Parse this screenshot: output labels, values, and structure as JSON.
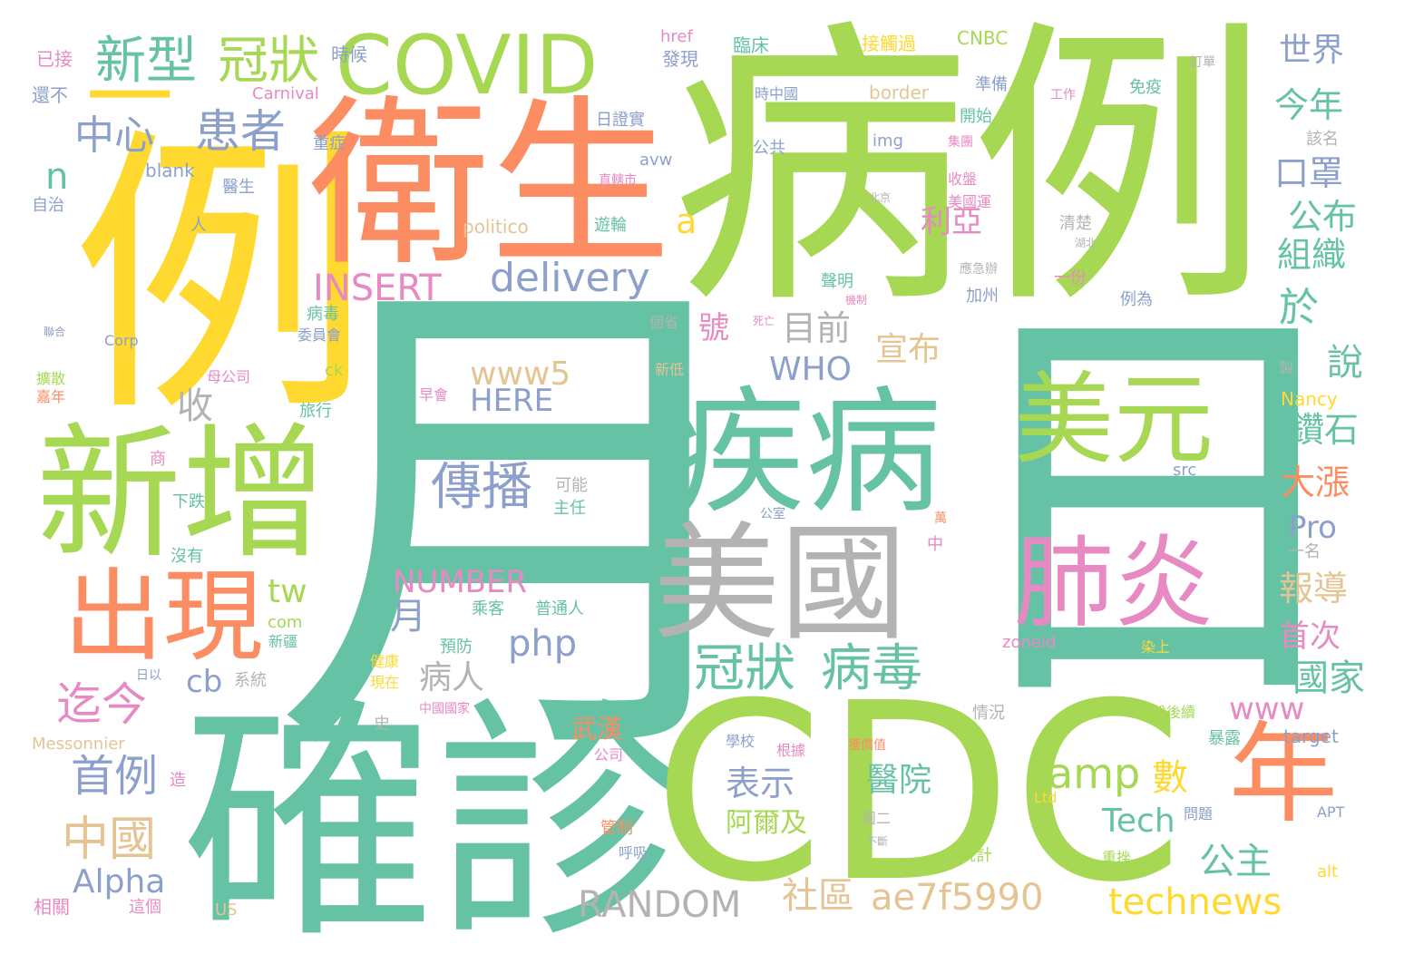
{
  "words": [
    {
      "text": "病例",
      "color": "#a6d854"
    },
    {
      "text": "月",
      "color": "#66c2a5"
    },
    {
      "text": "日",
      "color": "#66c2a5"
    },
    {
      "text": "例",
      "color": "#ffd92f"
    },
    {
      "text": "衛生",
      "color": "#fc8d62"
    },
    {
      "text": "確診",
      "color": "#66c2a5"
    },
    {
      "text": "CDC",
      "color": "#a6d854"
    },
    {
      "text": "新增",
      "color": "#a6d854"
    },
    {
      "text": "疾病",
      "color": "#66c2a5"
    },
    {
      "text": "美國",
      "color": "#b3b3b3"
    },
    {
      "text": "COVID",
      "color": "#a6d854"
    },
    {
      "text": "年",
      "color": "#fc8d62"
    },
    {
      "text": "出現",
      "color": "#fc8d62"
    },
    {
      "text": "美元",
      "color": "#a6d854"
    },
    {
      "text": "肺炎",
      "color": "#e78ac3"
    },
    {
      "text": "新型",
      "color": "#66c2a5"
    },
    {
      "text": "冠狀",
      "color": "#a6d854"
    },
    {
      "text": "冠狀",
      "color": "#66c2a5"
    },
    {
      "text": "病毒",
      "color": "#66c2a5"
    },
    {
      "text": "中心",
      "color": "#8da0cb"
    },
    {
      "text": "患者",
      "color": "#8da0cb"
    },
    {
      "text": "一",
      "color": "#ffd92f"
    },
    {
      "text": "delivery",
      "color": "#8da0cb"
    },
    {
      "text": "INSERT",
      "color": "#e78ac3"
    },
    {
      "text": "傳播",
      "color": "#8da0cb"
    },
    {
      "text": "迄今",
      "color": "#e78ac3"
    },
    {
      "text": "中國",
      "color": "#e5c494"
    },
    {
      "text": "首例",
      "color": "#8da0cb"
    },
    {
      "text": "amp",
      "color": "#a6d854"
    },
    {
      "text": "數",
      "color": "#ffd92f"
    },
    {
      "text": "ae7f5990",
      "color": "#e5c494"
    },
    {
      "text": "technews",
      "color": "#ffd92f"
    },
    {
      "text": "RANDOM",
      "color": "#b3b3b3"
    },
    {
      "text": "社區",
      "color": "#e5c494"
    },
    {
      "text": "Alpha",
      "color": "#8da0cb"
    },
    {
      "text": "NUMBER",
      "color": "#e78ac3"
    },
    {
      "text": "Tech",
      "color": "#66c2a5"
    },
    {
      "text": "www5",
      "color": "#e5c494"
    },
    {
      "text": "HERE",
      "color": "#8da0cb"
    },
    {
      "text": "WHO",
      "color": "#8da0cb"
    },
    {
      "text": "目前",
      "color": "#b3b3b3"
    },
    {
      "text": "宣布",
      "color": "#e5c494"
    },
    {
      "text": "php",
      "color": "#8da0cb"
    },
    {
      "text": "病人",
      "color": "#b3b3b3"
    },
    {
      "text": "cb",
      "color": "#8da0cb"
    },
    {
      "text": "表示",
      "color": "#8da0cb"
    },
    {
      "text": "醫院",
      "color": "#66c2a5"
    },
    {
      "text": "公主",
      "color": "#66c2a5"
    },
    {
      "text": "www",
      "color": "#e78ac3"
    },
    {
      "text": "世界",
      "color": "#8da0cb"
    },
    {
      "text": "今年",
      "color": "#66c2a5"
    },
    {
      "text": "口罩",
      "color": "#8da0cb"
    },
    {
      "text": "公布",
      "color": "#66c2a5"
    },
    {
      "text": "組織",
      "color": "#66c2a5"
    },
    {
      "text": "於",
      "color": "#66c2a5"
    },
    {
      "text": "說",
      "color": "#66c2a5"
    },
    {
      "text": "鑽石",
      "color": "#66c2a5"
    },
    {
      "text": "大漲",
      "color": "#fc8d62"
    },
    {
      "text": "Pro",
      "color": "#8da0cb"
    },
    {
      "text": "報導",
      "color": "#e5c494"
    },
    {
      "text": "首次",
      "color": "#e78ac3"
    },
    {
      "text": "國家",
      "color": "#66c2a5"
    },
    {
      "text": "利亞",
      "color": "#e78ac3"
    },
    {
      "text": "號",
      "color": "#e78ac3"
    },
    {
      "text": "收",
      "color": "#b3b3b3"
    },
    {
      "text": "tw",
      "color": "#a6d854"
    },
    {
      "text": "月",
      "color": "#8da0cb"
    },
    {
      "text": "n",
      "color": "#66c2a5"
    },
    {
      "text": "a",
      "color": "#ffd92f"
    },
    {
      "text": "阿爾及",
      "color": "#a6d854"
    },
    {
      "text": "武漢",
      "color": "#fc8d62"
    },
    {
      "text": "已接",
      "color": "#e78ac3"
    },
    {
      "text": "還不",
      "color": "#8da0cb"
    },
    {
      "text": "時候",
      "color": "#8da0cb"
    },
    {
      "text": "Carnival",
      "color": "#e78ac3"
    },
    {
      "text": "href",
      "color": "#e78ac3"
    },
    {
      "text": "發現",
      "color": "#8da0cb"
    },
    {
      "text": "臨床",
      "color": "#66c2a5"
    },
    {
      "text": "接觸過",
      "color": "#ffd92f"
    },
    {
      "text": "CNBC",
      "color": "#a6d854"
    },
    {
      "text": "border",
      "color": "#e5c494"
    },
    {
      "text": "重症",
      "color": "#8da0cb"
    },
    {
      "text": "blank",
      "color": "#8da0cb"
    },
    {
      "text": "日證實",
      "color": "#8da0cb"
    },
    {
      "text": "img",
      "color": "#8da0cb"
    },
    {
      "text": "時中國",
      "color": "#8da0cb"
    },
    {
      "text": "公共",
      "color": "#8da0cb"
    },
    {
      "text": "免疫",
      "color": "#66c2a5"
    },
    {
      "text": "開始",
      "color": "#66c2a5"
    },
    {
      "text": "準備",
      "color": "#8da0cb"
    },
    {
      "text": "avw",
      "color": "#8da0cb"
    },
    {
      "text": "醫生",
      "color": "#8da0cb"
    },
    {
      "text": "自治",
      "color": "#8da0cb"
    },
    {
      "text": "politico",
      "color": "#e5c494"
    },
    {
      "text": "遊輪",
      "color": "#66c2a5"
    },
    {
      "text": "收盤",
      "color": "#e78ac3"
    },
    {
      "text": "美國運",
      "color": "#e78ac3"
    },
    {
      "text": "清楚",
      "color": "#b3b3b3"
    },
    {
      "text": "聲明",
      "color": "#66c2a5"
    },
    {
      "text": "加州",
      "color": "#8da0cb"
    },
    {
      "text": "一份",
      "color": "#e78ac3"
    },
    {
      "text": "例為",
      "color": "#8da0cb"
    },
    {
      "text": "Corp",
      "color": "#8da0cb"
    },
    {
      "text": "病毒",
      "color": "#66c2a5"
    },
    {
      "text": "委員會",
      "color": "#8da0cb"
    },
    {
      "text": "母公司",
      "color": "#e78ac3"
    },
    {
      "text": "ck",
      "color": "#a6d854"
    },
    {
      "text": "旅行",
      "color": "#66c2a5"
    },
    {
      "text": "早會",
      "color": "#e78ac3"
    },
    {
      "text": "Nancy",
      "color": "#ffd92f"
    },
    {
      "text": "src",
      "color": "#8da0cb"
    },
    {
      "text": "可能",
      "color": "#b3b3b3"
    },
    {
      "text": "主任",
      "color": "#66c2a5"
    },
    {
      "text": "下跌",
      "color": "#66c2a5"
    },
    {
      "text": "沒有",
      "color": "#66c2a5"
    },
    {
      "text": "乘客",
      "color": "#66c2a5"
    },
    {
      "text": "普通人",
      "color": "#66c2a5"
    },
    {
      "text": "預防",
      "color": "#66c2a5"
    },
    {
      "text": "com",
      "color": "#a6d854"
    },
    {
      "text": "新疆",
      "color": "#66c2a5"
    },
    {
      "text": "健康",
      "color": "#ffd92f"
    },
    {
      "text": "現在",
      "color": "#ffd92f"
    },
    {
      "text": "系統",
      "color": "#b3b3b3"
    },
    {
      "text": "日以",
      "color": "#8da0cb"
    },
    {
      "text": "中國國家",
      "color": "#e78ac3"
    },
    {
      "text": "zoneid",
      "color": "#e78ac3"
    },
    {
      "text": "染上",
      "color": "#ffd92f"
    },
    {
      "text": "情況",
      "color": "#b3b3b3"
    },
    {
      "text": "盤後續",
      "color": "#a6d854"
    },
    {
      "text": "target",
      "color": "#8da0cb"
    },
    {
      "text": "Messonnier",
      "color": "#e5c494"
    },
    {
      "text": "學校",
      "color": "#8da0cb"
    },
    {
      "text": "根據",
      "color": "#e78ac3"
    },
    {
      "text": "獲價值",
      "color": "#fc8d62"
    },
    {
      "text": "暴露",
      "color": "#66c2a5"
    },
    {
      "text": "Ltd",
      "color": "#ffd92f"
    },
    {
      "text": "週二",
      "color": "#b3b3b3"
    },
    {
      "text": "問題",
      "color": "#8da0cb"
    },
    {
      "text": "APT",
      "color": "#8da0cb"
    },
    {
      "text": "管制",
      "color": "#fc8d62"
    },
    {
      "text": "呼吸",
      "color": "#8da0cb"
    },
    {
      "text": "統計",
      "color": "#a6d854"
    },
    {
      "text": "重挫",
      "color": "#a6d854"
    },
    {
      "text": "alt",
      "color": "#ffd92f"
    },
    {
      "text": "相關",
      "color": "#e78ac3"
    },
    {
      "text": "這個",
      "color": "#e78ac3"
    },
    {
      "text": "US",
      "color": "#e5c494"
    },
    {
      "text": "造",
      "color": "#e78ac3"
    },
    {
      "text": "公司",
      "color": "#e78ac3"
    },
    {
      "text": "史",
      "color": "#b3b3b3"
    },
    {
      "text": "人",
      "color": "#8da0cb"
    },
    {
      "text": "一名",
      "color": "#b3b3b3"
    },
    {
      "text": "中",
      "color": "#e78ac3"
    },
    {
      "text": "該名",
      "color": "#b3b3b3"
    },
    {
      "text": "訂單",
      "color": "#b3b3b3"
    },
    {
      "text": "工作",
      "color": "#e78ac3"
    },
    {
      "text": "集團",
      "color": "#e78ac3"
    },
    {
      "text": "個省",
      "color": "#b3b3b3"
    },
    {
      "text": "新低",
      "color": "#e5c494"
    },
    {
      "text": "製",
      "color": "#b3b3b3"
    },
    {
      "text": "公室",
      "color": "#8da0cb"
    },
    {
      "text": "北京",
      "color": "#b3b3b3"
    },
    {
      "text": "湖北",
      "color": "#b3b3b3"
    },
    {
      "text": "應急辦",
      "color": "#b3b3b3"
    },
    {
      "text": "直轄市",
      "color": "#e78ac3"
    },
    {
      "text": "機制",
      "color": "#e78ac3"
    },
    {
      "text": "死亡",
      "color": "#e78ac3"
    },
    {
      "text": "萬",
      "color": "#fc8d62"
    },
    {
      "text": "商",
      "color": "#e78ac3"
    },
    {
      "text": "聯合",
      "color": "#8da0cb"
    },
    {
      "text": "嘉年",
      "color": "#fc8d62"
    },
    {
      "text": "擴散",
      "color": "#a6d854"
    },
    {
      "text": "不斷",
      "color": "#b3b3b3"
    }
  ]
}
